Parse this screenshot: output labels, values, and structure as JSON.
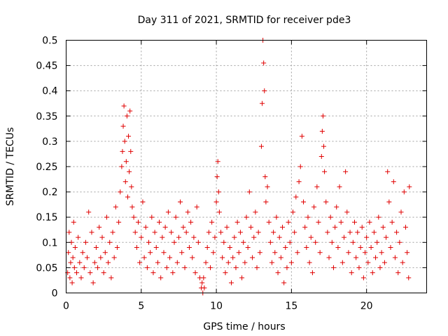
{
  "chart_data": {
    "type": "scatter",
    "title": "Day 311 of 2021, SRMTID for receiver pde3",
    "xlabel": "GPS time / hours",
    "ylabel": "SRMTID / TECUs",
    "xlim": [
      0,
      24
    ],
    "ylim": [
      0,
      0.5
    ],
    "xticks": [
      0,
      5,
      10,
      15,
      20
    ],
    "xtick_labels": [
      "0",
      "5",
      "10",
      "15",
      "20"
    ],
    "yticks": [
      0,
      0.05,
      0.1,
      0.15,
      0.2,
      0.25,
      0.3,
      0.35,
      0.4,
      0.45,
      0.5
    ],
    "ytick_labels": [
      "0",
      "0.05",
      "0.1",
      "0.15",
      "0.2",
      "0.25",
      "0.3",
      "0.35",
      "0.4",
      "0.45",
      "0.5"
    ],
    "grid": true,
    "marker_color": "#e00000",
    "series": [
      {
        "name": "SRMTID",
        "points": [
          [
            0.1,
            0.04
          ],
          [
            0.15,
            0.08
          ],
          [
            0.2,
            0.12
          ],
          [
            0.25,
            0.03
          ],
          [
            0.3,
            0.06
          ],
          [
            0.35,
            0.1
          ],
          [
            0.4,
            0.02
          ],
          [
            0.45,
            0.07
          ],
          [
            0.5,
            0.14
          ],
          [
            0.55,
            0.05
          ],
          [
            0.6,
            0.09
          ],
          [
            0.7,
            0.04
          ],
          [
            0.8,
            0.11
          ],
          [
            0.9,
            0.06
          ],
          [
            1.0,
            0.03
          ],
          [
            1.1,
            0.08
          ],
          [
            1.2,
            0.05
          ],
          [
            1.3,
            0.1
          ],
          [
            1.4,
            0.07
          ],
          [
            1.5,
            0.16
          ],
          [
            1.6,
            0.04
          ],
          [
            1.7,
            0.12
          ],
          [
            1.8,
            0.02
          ],
          [
            1.9,
            0.06
          ],
          [
            2.0,
            0.09
          ],
          [
            2.1,
            0.05
          ],
          [
            2.2,
            0.13
          ],
          [
            2.3,
            0.07
          ],
          [
            2.4,
            0.11
          ],
          [
            2.5,
            0.04
          ],
          [
            2.6,
            0.08
          ],
          [
            2.7,
            0.15
          ],
          [
            2.8,
            0.06
          ],
          [
            2.9,
            0.1
          ],
          [
            3.0,
            0.03
          ],
          [
            3.1,
            0.12
          ],
          [
            3.2,
            0.07
          ],
          [
            3.3,
            0.17
          ],
          [
            3.4,
            0.09
          ],
          [
            3.5,
            0.14
          ],
          [
            3.6,
            0.2
          ],
          [
            3.7,
            0.25
          ],
          [
            3.75,
            0.28
          ],
          [
            3.8,
            0.33
          ],
          [
            3.85,
            0.37
          ],
          [
            3.9,
            0.3
          ],
          [
            3.95,
            0.22
          ],
          [
            4.0,
            0.26
          ],
          [
            4.05,
            0.35
          ],
          [
            4.1,
            0.19
          ],
          [
            4.15,
            0.31
          ],
          [
            4.2,
            0.24
          ],
          [
            4.25,
            0.36
          ],
          [
            4.3,
            0.28
          ],
          [
            4.35,
            0.21
          ],
          [
            4.4,
            0.17
          ],
          [
            4.5,
            0.15
          ],
          [
            4.6,
            0.12
          ],
          [
            4.7,
            0.09
          ],
          [
            4.8,
            0.14
          ],
          [
            4.9,
            0.06
          ],
          [
            5.0,
            0.11
          ],
          [
            5.1,
            0.18
          ],
          [
            5.2,
            0.07
          ],
          [
            5.3,
            0.13
          ],
          [
            5.4,
            0.05
          ],
          [
            5.5,
            0.1
          ],
          [
            5.6,
            0.08
          ],
          [
            5.7,
            0.15
          ],
          [
            5.8,
            0.04
          ],
          [
            5.9,
            0.12
          ],
          [
            6.0,
            0.09
          ],
          [
            6.1,
            0.06
          ],
          [
            6.2,
            0.14
          ],
          [
            6.3,
            0.03
          ],
          [
            6.4,
            0.11
          ],
          [
            6.5,
            0.08
          ],
          [
            6.6,
            0.13
          ],
          [
            6.7,
            0.05
          ],
          [
            6.8,
            0.16
          ],
          [
            6.9,
            0.07
          ],
          [
            7.0,
            0.12
          ],
          [
            7.1,
            0.04
          ],
          [
            7.2,
            0.1
          ],
          [
            7.3,
            0.15
          ],
          [
            7.4,
            0.06
          ],
          [
            7.5,
            0.11
          ],
          [
            7.6,
            0.18
          ],
          [
            7.7,
            0.08
          ],
          [
            7.8,
            0.13
          ],
          [
            7.9,
            0.05
          ],
          [
            8.0,
            0.12
          ],
          [
            8.1,
            0.16
          ],
          [
            8.2,
            0.09
          ],
          [
            8.3,
            0.14
          ],
          [
            8.4,
            0.07
          ],
          [
            8.5,
            0.11
          ],
          [
            8.6,
            0.04
          ],
          [
            8.7,
            0.17
          ],
          [
            8.8,
            0.1
          ],
          [
            8.9,
            0.03
          ],
          [
            9.0,
            0.01
          ],
          [
            9.05,
            0.02
          ],
          [
            9.1,
            0.0
          ],
          [
            9.15,
            0.03
          ],
          [
            9.2,
            0.01
          ],
          [
            9.3,
            0.06
          ],
          [
            9.4,
            0.09
          ],
          [
            9.5,
            0.12
          ],
          [
            9.6,
            0.05
          ],
          [
            9.7,
            0.14
          ],
          [
            9.8,
            0.08
          ],
          [
            9.9,
            0.11
          ],
          [
            10.0,
            0.18
          ],
          [
            10.05,
            0.23
          ],
          [
            10.1,
            0.26
          ],
          [
            10.15,
            0.2
          ],
          [
            10.2,
            0.16
          ],
          [
            10.3,
            0.12
          ],
          [
            10.4,
            0.07
          ],
          [
            10.5,
            0.1
          ],
          [
            10.6,
            0.04
          ],
          [
            10.7,
            0.13
          ],
          [
            10.8,
            0.06
          ],
          [
            10.9,
            0.09
          ],
          [
            11.0,
            0.02
          ],
          [
            11.1,
            0.07
          ],
          [
            11.2,
            0.11
          ],
          [
            11.3,
            0.05
          ],
          [
            11.4,
            0.14
          ],
          [
            11.5,
            0.08
          ],
          [
            11.6,
            0.12
          ],
          [
            11.7,
            0.03
          ],
          [
            11.8,
            0.1
          ],
          [
            11.9,
            0.06
          ],
          [
            12.0,
            0.15
          ],
          [
            12.1,
            0.09
          ],
          [
            12.2,
            0.2
          ],
          [
            12.3,
            0.13
          ],
          [
            12.4,
            0.07
          ],
          [
            12.5,
            0.11
          ],
          [
            12.6,
            0.16
          ],
          [
            12.7,
            0.05
          ],
          [
            12.8,
            0.12
          ],
          [
            12.9,
            0.08
          ],
          [
            13.0,
            0.29
          ],
          [
            13.05,
            0.375
          ],
          [
            13.1,
            0.5
          ],
          [
            13.15,
            0.455
          ],
          [
            13.2,
            0.4
          ],
          [
            13.25,
            0.23
          ],
          [
            13.3,
            0.18
          ],
          [
            13.4,
            0.21
          ],
          [
            13.5,
            0.14
          ],
          [
            13.6,
            0.1
          ],
          [
            13.7,
            0.06
          ],
          [
            13.8,
            0.12
          ],
          [
            13.9,
            0.08
          ],
          [
            14.0,
            0.15
          ],
          [
            14.1,
            0.04
          ],
          [
            14.2,
            0.11
          ],
          [
            14.3,
            0.07
          ],
          [
            14.4,
            0.13
          ],
          [
            14.5,
            0.02
          ],
          [
            14.6,
            0.09
          ],
          [
            14.7,
            0.05
          ],
          [
            14.8,
            0.14
          ],
          [
            14.9,
            0.1
          ],
          [
            15.0,
            0.06
          ],
          [
            15.1,
            0.16
          ],
          [
            15.2,
            0.12
          ],
          [
            15.3,
            0.19
          ],
          [
            15.4,
            0.08
          ],
          [
            15.5,
            0.22
          ],
          [
            15.6,
            0.25
          ],
          [
            15.7,
            0.31
          ],
          [
            15.8,
            0.18
          ],
          [
            15.9,
            0.13
          ],
          [
            16.0,
            0.09
          ],
          [
            16.1,
            0.15
          ],
          [
            16.2,
            0.06
          ],
          [
            16.3,
            0.11
          ],
          [
            16.4,
            0.04
          ],
          [
            16.5,
            0.17
          ],
          [
            16.6,
            0.1
          ],
          [
            16.7,
            0.21
          ],
          [
            16.8,
            0.14
          ],
          [
            16.9,
            0.08
          ],
          [
            17.0,
            0.27
          ],
          [
            17.05,
            0.32
          ],
          [
            17.1,
            0.35
          ],
          [
            17.15,
            0.29
          ],
          [
            17.2,
            0.24
          ],
          [
            17.3,
            0.18
          ],
          [
            17.4,
            0.12
          ],
          [
            17.5,
            0.07
          ],
          [
            17.6,
            0.15
          ],
          [
            17.7,
            0.1
          ],
          [
            17.8,
            0.05
          ],
          [
            17.9,
            0.13
          ],
          [
            18.0,
            0.17
          ],
          [
            18.1,
            0.09
          ],
          [
            18.2,
            0.21
          ],
          [
            18.3,
            0.14
          ],
          [
            18.4,
            0.06
          ],
          [
            18.5,
            0.11
          ],
          [
            18.6,
            0.24
          ],
          [
            18.7,
            0.16
          ],
          [
            18.8,
            0.08
          ],
          [
            18.9,
            0.12
          ],
          [
            19.0,
            0.04
          ],
          [
            19.1,
            0.1
          ],
          [
            19.2,
            0.14
          ],
          [
            19.3,
            0.07
          ],
          [
            19.4,
            0.12
          ],
          [
            19.5,
            0.05
          ],
          [
            19.6,
            0.09
          ],
          [
            19.7,
            0.13
          ],
          [
            19.8,
            0.03
          ],
          [
            19.9,
            0.08
          ],
          [
            20.0,
            0.11
          ],
          [
            20.1,
            0.06
          ],
          [
            20.2,
            0.14
          ],
          [
            20.3,
            0.09
          ],
          [
            20.4,
            0.04
          ],
          [
            20.5,
            0.12
          ],
          [
            20.6,
            0.07
          ],
          [
            20.7,
            0.1
          ],
          [
            20.8,
            0.15
          ],
          [
            20.9,
            0.05
          ],
          [
            21.0,
            0.08
          ],
          [
            21.1,
            0.13
          ],
          [
            21.2,
            0.06
          ],
          [
            21.3,
            0.11
          ],
          [
            21.4,
            0.24
          ],
          [
            21.5,
            0.18
          ],
          [
            21.6,
            0.09
          ],
          [
            21.7,
            0.14
          ],
          [
            21.8,
            0.22
          ],
          [
            21.9,
            0.07
          ],
          [
            22.0,
            0.12
          ],
          [
            22.1,
            0.04
          ],
          [
            22.2,
            0.1
          ],
          [
            22.3,
            0.16
          ],
          [
            22.4,
            0.06
          ],
          [
            22.5,
            0.2
          ],
          [
            22.6,
            0.13
          ],
          [
            22.7,
            0.08
          ],
          [
            22.8,
            0.03
          ],
          [
            22.85,
            0.21
          ]
        ]
      }
    ]
  }
}
